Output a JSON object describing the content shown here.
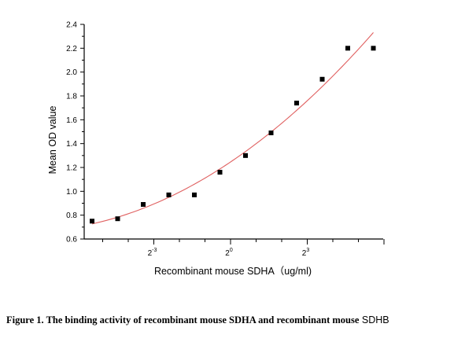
{
  "chart_data": {
    "type": "scatter",
    "xscale": "log2",
    "xlabel": "Recombinant mouse SDHA（ug/ml)",
    "ylabel": "Mean OD value",
    "ylim": [
      0.6,
      2.4
    ],
    "yticks": [
      0.6,
      0.8,
      1.0,
      1.2,
      1.4,
      1.6,
      1.8,
      2.0,
      2.2,
      2.4
    ],
    "ytick_labels": [
      "0.6",
      "0.8",
      "1.0",
      "1.2",
      "1.4",
      "1.6",
      "1.8",
      "2.0",
      "2.2",
      "2.4"
    ],
    "xtick_labels": [
      {
        "base": "2",
        "exp": "-3"
      },
      {
        "base": "2",
        "exp": "0"
      },
      {
        "base": "2",
        "exp": "3"
      }
    ],
    "series": [
      {
        "marker": "square",
        "color": "#000000",
        "x": [
          0.0234375,
          0.046875,
          0.09375,
          0.1875,
          0.375,
          0.75,
          1.5,
          3,
          6,
          12,
          24,
          48
        ],
        "y": [
          0.75,
          0.77,
          0.89,
          0.97,
          0.97,
          1.16,
          1.3,
          1.49,
          1.74,
          1.94,
          2.2,
          2.2
        ]
      }
    ],
    "fit_curve": {
      "color": "#e06060",
      "style": "smooth"
    },
    "grid": false,
    "legend": "none"
  },
  "caption": {
    "bold_text": "Figure 1. The binding activity of recombinant mouse SDHA and recombinant mouse",
    "plain_text": "SDHB"
  }
}
